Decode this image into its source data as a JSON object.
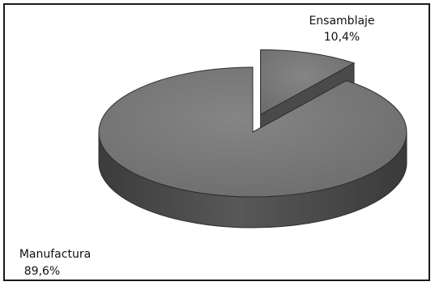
{
  "chart_data": {
    "type": "pie",
    "style": "3d-exploded",
    "slices": [
      {
        "label": "Manufactura",
        "value": 89.6,
        "value_label": "89,6%"
      },
      {
        "label": "Ensamblaje",
        "value": 10.4,
        "value_label": "10,4%"
      }
    ],
    "colors": {
      "top": "#7c7c7c",
      "side": "#4a4a4a",
      "edge": "#2e2e2e",
      "background": "#ffffff",
      "border": "#1a1a1a"
    }
  }
}
